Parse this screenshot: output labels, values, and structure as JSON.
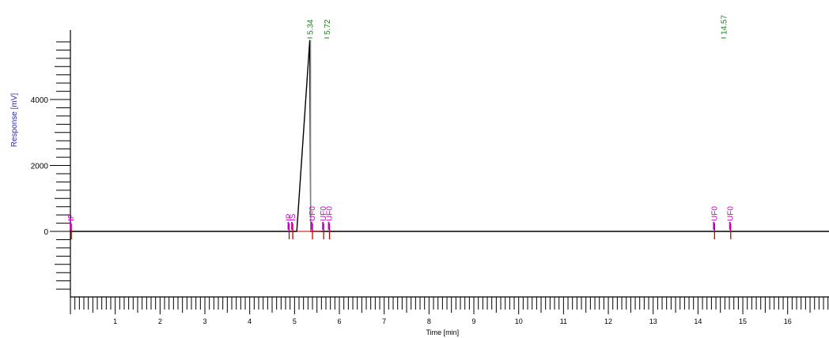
{
  "chart_data": {
    "type": "line",
    "xlabel": "Time [min]",
    "ylabel": "Response [mV]",
    "xlim": [
      0,
      17.2
    ],
    "ylim": [
      -2500,
      6000
    ],
    "x_ticks": [
      1,
      2,
      3,
      4,
      5,
      6,
      7,
      8,
      9,
      10,
      11,
      12,
      13,
      14,
      15,
      16
    ],
    "y_ticks": [
      0,
      2000,
      4000
    ],
    "series": [
      {
        "x": [
          0.0,
          5.05,
          5.34,
          5.36,
          5.4,
          17.2
        ],
        "y": [
          0,
          0,
          5800,
          0,
          0,
          0
        ]
      }
    ],
    "peak_labels": [
      {
        "x": 5.34,
        "text": "5.34"
      },
      {
        "x": 5.72,
        "text": "5.72"
      },
      {
        "x": 14.57,
        "text": "14.57"
      }
    ],
    "integration_markers": [
      {
        "x": 0.02,
        "text": "IP"
      },
      {
        "x": 4.88,
        "text": "IP"
      },
      {
        "x": 4.96,
        "text": "IS"
      },
      {
        "x": 5.4,
        "text": "UF0"
      },
      {
        "x": 5.65,
        "text": "UF0"
      },
      {
        "x": 5.78,
        "text": "UF0"
      },
      {
        "x": 14.37,
        "text": "UF0"
      },
      {
        "x": 14.73,
        "text": "UF0"
      }
    ],
    "colors": {
      "axis": "#000000",
      "trace": "#000000",
      "ylabel": "#2a2ab0",
      "peak_label": "#1f7a1f",
      "marker": "#cc00cc",
      "baseline_tick": "#cc0000"
    }
  }
}
